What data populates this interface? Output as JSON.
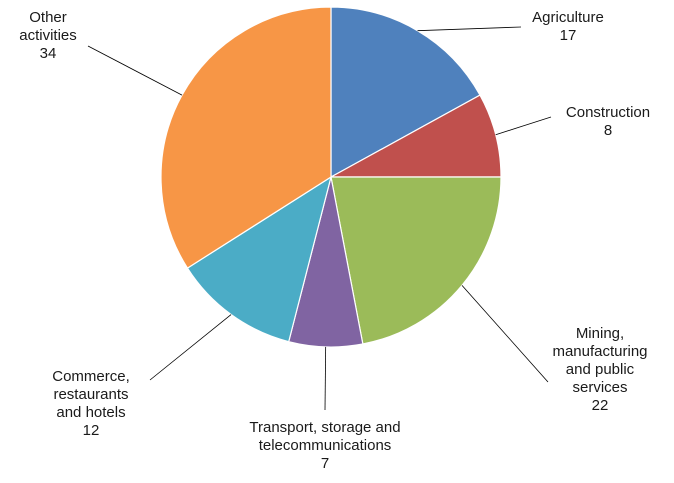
{
  "chart_data": {
    "type": "pie",
    "title": "",
    "start_angle_deg": 0,
    "direction": "clockwise",
    "legend": "none",
    "slices": [
      {
        "label_lines": [
          "Agriculture"
        ],
        "value": 17,
        "color": "#4f81bd"
      },
      {
        "label_lines": [
          "Construction"
        ],
        "value": 8,
        "color": "#c0504d"
      },
      {
        "label_lines": [
          "Mining,",
          "manufacturing",
          "and public",
          "services"
        ],
        "value": 22,
        "color": "#9bbb59"
      },
      {
        "label_lines": [
          "Transport, storage and",
          "telecommunications"
        ],
        "value": 7,
        "color": "#8064a2"
      },
      {
        "label_lines": [
          "Commerce,",
          "restaurants",
          "and hotels"
        ],
        "value": 12,
        "color": "#4bacc6"
      },
      {
        "label_lines": [
          "Other",
          "activities"
        ],
        "value": 34,
        "color": "#f79646"
      }
    ]
  }
}
